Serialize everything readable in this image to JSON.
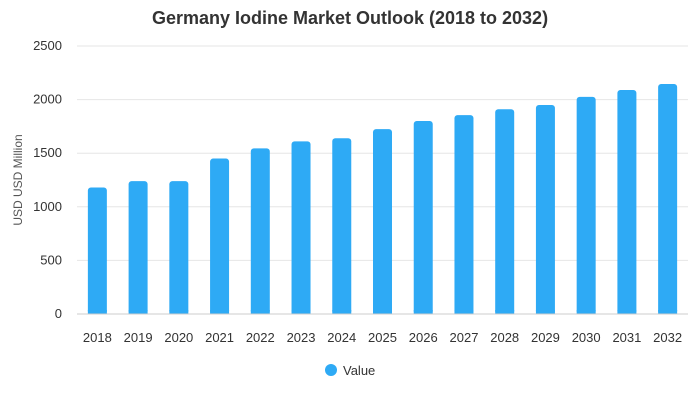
{
  "chart_data": {
    "type": "bar",
    "title": "Germany Iodine Market Outlook (2018 to 2032)",
    "xlabel": "",
    "ylabel": "USD USD Million",
    "ylim": [
      0,
      2500
    ],
    "yticks": [
      0,
      500,
      1000,
      1500,
      2000,
      2500
    ],
    "grid": true,
    "legend_position": "bottom",
    "categories": [
      "2018",
      "2019",
      "2020",
      "2021",
      "2022",
      "2023",
      "2024",
      "2025",
      "2026",
      "2027",
      "2028",
      "2029",
      "2030",
      "2031",
      "2032"
    ],
    "series": [
      {
        "name": "Value",
        "color": "#2eaaf5",
        "values": [
          1180,
          1240,
          1240,
          1450,
          1545,
          1610,
          1640,
          1725,
          1800,
          1855,
          1910,
          1950,
          2025,
          2090,
          2145
        ]
      }
    ]
  }
}
